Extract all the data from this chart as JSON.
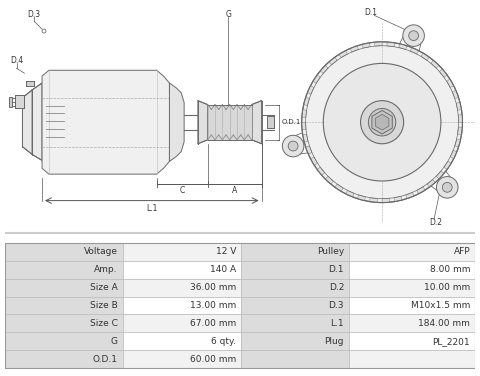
{
  "table_left": [
    [
      "Voltage",
      "12 V"
    ],
    [
      "Amp.",
      "140 A"
    ],
    [
      "Size A",
      "36.00 mm"
    ],
    [
      "Size B",
      "13.00 mm"
    ],
    [
      "Size C",
      "67.00 mm"
    ],
    [
      "G",
      "6 qty."
    ],
    [
      "O.D.1",
      "60.00 mm"
    ]
  ],
  "table_right": [
    [
      "Pulley",
      "AFP"
    ],
    [
      "D.1",
      "8.00 mm"
    ],
    [
      "D.2",
      "10.00 mm"
    ],
    [
      "D.3",
      "M10x1.5 mm"
    ],
    [
      "L.1",
      "184.00 mm"
    ],
    [
      "Plug",
      "PL_2201"
    ],
    [
      "",
      ""
    ]
  ],
  "bg_color": "#ffffff",
  "table_header_bg": "#dcdcdc",
  "table_row_bg1": "#f2f2f2",
  "table_row_bg2": "#ffffff",
  "table_border": "#bbbbbb",
  "lc": "#6a6a6a",
  "dc": "#888888",
  "dim_color": "#555555"
}
